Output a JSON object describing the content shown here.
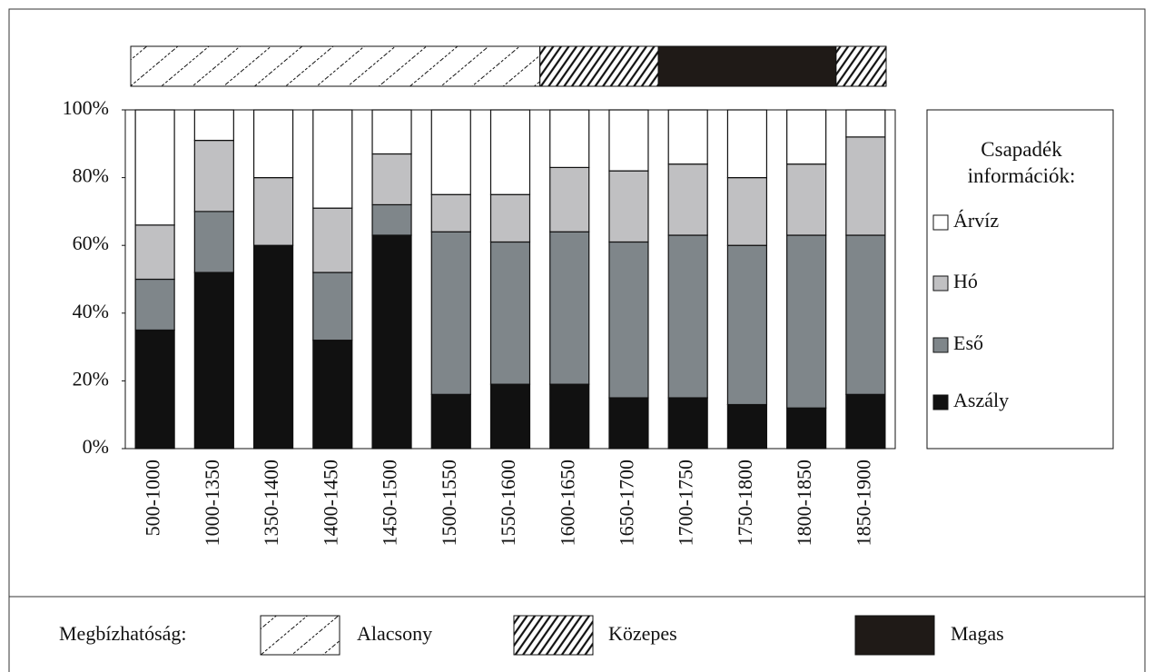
{
  "chart_data": {
    "type": "stacked-bar-100",
    "categories": [
      "500-1000",
      "1000-1350",
      "1350-1400",
      "1400-1450",
      "1450-1500",
      "1500-1550",
      "1550-1600",
      "1600-1650",
      "1650-1700",
      "1700-1750",
      "1750-1800",
      "1800-1850",
      "1850-1900"
    ],
    "series": [
      {
        "name": "Aszály",
        "color": "#111111",
        "values": [
          35,
          52,
          60,
          32,
          63,
          16,
          19,
          19,
          15,
          15,
          13,
          12,
          16
        ]
      },
      {
        "name": "Eső",
        "color": "#7f868a",
        "values": [
          15,
          18,
          0,
          20,
          9,
          48,
          42,
          45,
          46,
          48,
          47,
          51,
          47
        ]
      },
      {
        "name": "Hó",
        "color": "#c0c0c2",
        "values": [
          16,
          21,
          20,
          19,
          15,
          11,
          14,
          19,
          21,
          21,
          20,
          21,
          29
        ]
      },
      {
        "name": "Árvíz",
        "color": "#ffffff",
        "values": [
          34,
          9,
          20,
          29,
          13,
          25,
          25,
          17,
          18,
          16,
          20,
          16,
          8
        ]
      }
    ],
    "ylim": [
      0,
      100
    ],
    "yticks": [
      {
        "value": 0,
        "label": "0%"
      },
      {
        "value": 20,
        "label": "20%"
      },
      {
        "value": 40,
        "label": "40%"
      },
      {
        "value": 60,
        "label": "60%"
      },
      {
        "value": 80,
        "label": "80%"
      },
      {
        "value": 100,
        "label": "100%"
      }
    ],
    "legend_title": "Csapadék információk:",
    "legend_position": "right",
    "reliability_label": "Megbízhatóság:",
    "reliability_levels": [
      "Alacsony",
      "Közepes",
      "Magas"
    ],
    "reliability": [
      "Alacsony",
      "Alacsony",
      "Alacsony",
      "Alacsony",
      "Alacsony",
      "Alacsony",
      "Alacsony",
      "Közepes",
      "Közepes",
      "Magas",
      "Magas",
      "Magas",
      "Közepes"
    ]
  }
}
